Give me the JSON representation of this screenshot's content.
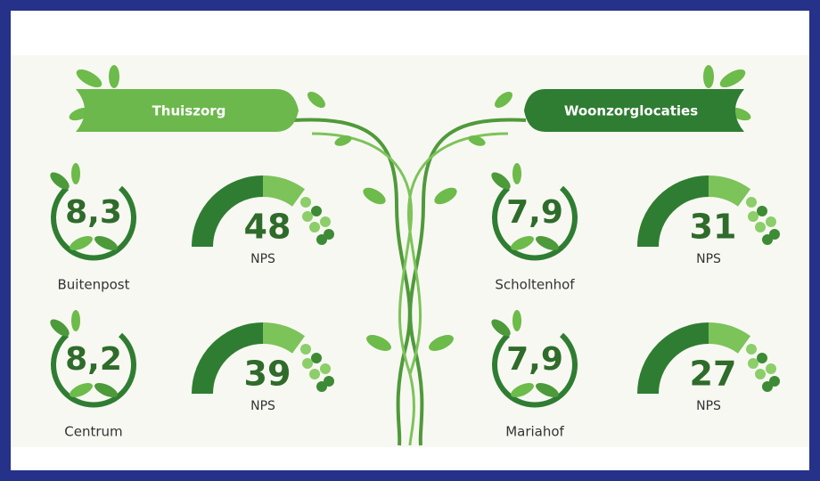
{
  "sections": [
    {
      "title": "Thuiszorg",
      "items": [
        {
          "score": "8,3",
          "location": "Buitenpost",
          "nps": "48",
          "nps_label": "NPS"
        },
        {
          "score": "8,2",
          "location": "Centrum",
          "nps": "39",
          "nps_label": "NPS"
        }
      ]
    },
    {
      "title": "Woonzorglocaties",
      "items": [
        {
          "score": "7,9",
          "location": "Scholtenhof",
          "nps": "31",
          "nps_label": "NPS"
        },
        {
          "score": "7,9",
          "location": "Mariahof",
          "nps": "27",
          "nps_label": "NPS"
        }
      ]
    }
  ]
}
